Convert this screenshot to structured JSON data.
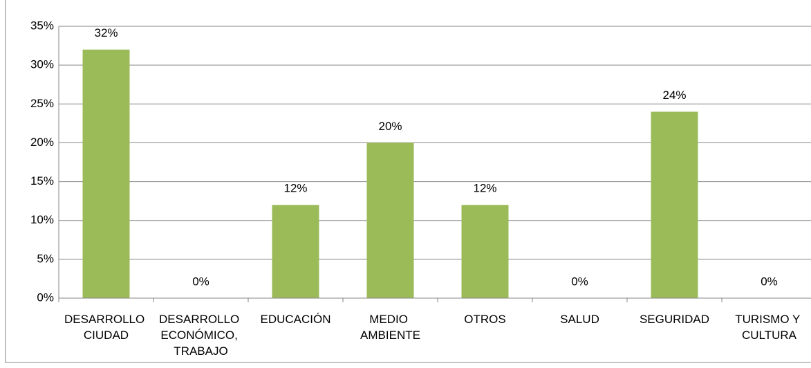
{
  "chart_data": {
    "type": "bar",
    "categories": [
      "DESARROLLO CIUDAD",
      "DESARROLLO ECONÓMICO, TRABAJO",
      "EDUCACIÓN",
      "MEDIO AMBIENTE",
      "OTROS",
      "SALUD",
      "SEGURIDAD",
      "TURISMO Y CULTURA"
    ],
    "values": [
      32,
      0,
      12,
      20,
      12,
      0,
      24,
      0
    ],
    "value_labels": [
      "32%",
      "0%",
      "12%",
      "20%",
      "12%",
      "0%",
      "24%",
      "0%"
    ],
    "color": "#9bbb59",
    "ylim": [
      0,
      35
    ],
    "yticks": [
      {
        "value": 0,
        "label": "0%"
      },
      {
        "value": 5,
        "label": "5%"
      },
      {
        "value": 10,
        "label": "10%"
      },
      {
        "value": 15,
        "label": "15%"
      },
      {
        "value": 20,
        "label": "20%"
      },
      {
        "value": 25,
        "label": "25%"
      },
      {
        "value": 30,
        "label": "30%"
      },
      {
        "value": 35,
        "label": "35%"
      }
    ],
    "grid": true
  }
}
